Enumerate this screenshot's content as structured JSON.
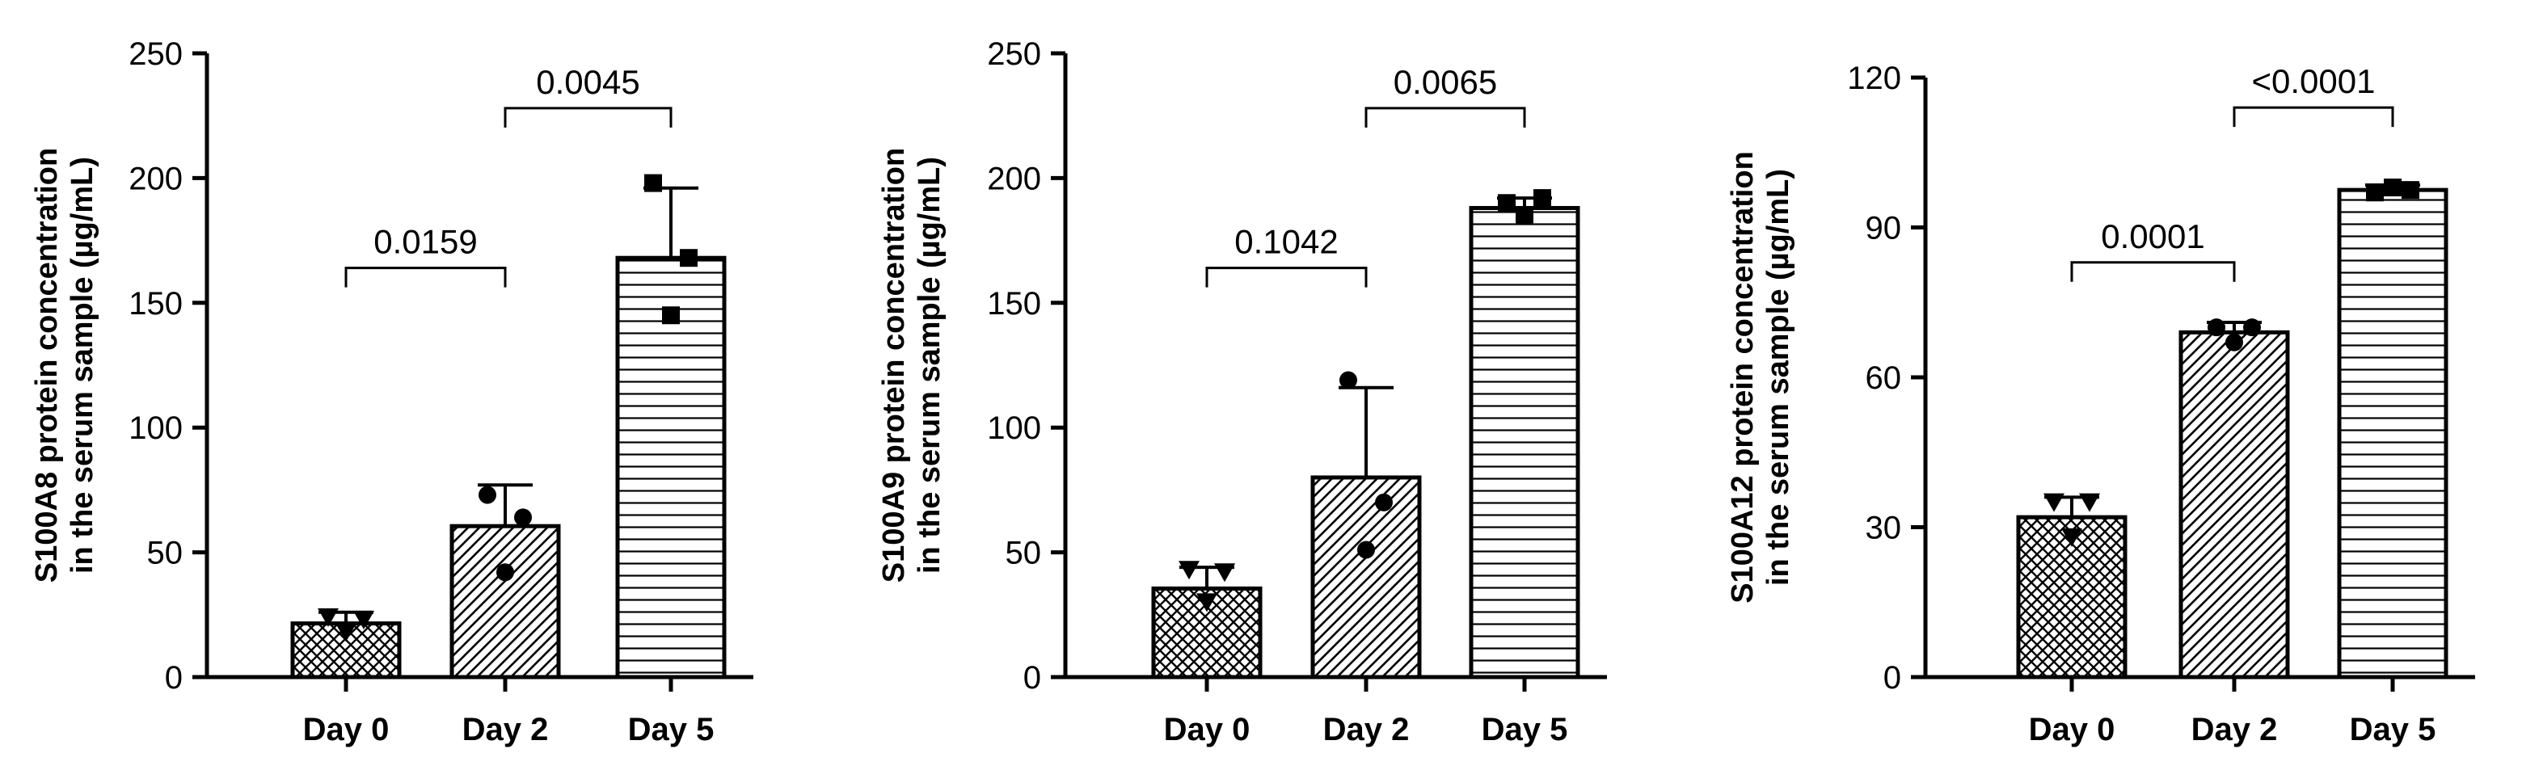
{
  "chart_data": [
    {
      "type": "bar",
      "categories": [
        "Day 0",
        "Day 2",
        "Day 5"
      ],
      "values": [
        21.5,
        60.5,
        168
      ],
      "error_upper": [
        26,
        77,
        196
      ],
      "points": [
        [
          24,
          18,
          23
        ],
        [
          73,
          42,
          64
        ],
        [
          198,
          145,
          168
        ]
      ],
      "marker": [
        "triangle",
        "circle",
        "square"
      ],
      "ylabel_lines": [
        "S100A8 protein concentration",
        "in the serum sample (µg/mL)"
      ],
      "ylim": [
        0,
        250
      ],
      "yticks": [
        0,
        50,
        100,
        150,
        200,
        250
      ],
      "comparisons": [
        {
          "from": 0,
          "to": 1,
          "label": "0.0159",
          "y": 164
        },
        {
          "from": 1,
          "to": 2,
          "label": "0.0045",
          "y": 228
        }
      ]
    },
    {
      "type": "bar",
      "categories": [
        "Day 0",
        "Day 2",
        "Day 5"
      ],
      "values": [
        35.5,
        80,
        188
      ],
      "error_upper": [
        44,
        116,
        192
      ],
      "points": [
        [
          43,
          30,
          42
        ],
        [
          119,
          51,
          70
        ],
        [
          190,
          185,
          192
        ]
      ],
      "marker": [
        "triangle",
        "circle",
        "square"
      ],
      "ylabel_lines": [
        "S100A9 protein concentration",
        "in the serum sample (µg/mL)"
      ],
      "ylim": [
        0,
        250
      ],
      "yticks": [
        0,
        50,
        100,
        150,
        200,
        250
      ],
      "comparisons": [
        {
          "from": 0,
          "to": 1,
          "label": "0.1042",
          "y": 164
        },
        {
          "from": 1,
          "to": 2,
          "label": "0.0065",
          "y": 228
        }
      ]
    },
    {
      "type": "bar",
      "categories": [
        "Day 0",
        "Day 2",
        "Day 5"
      ],
      "values": [
        32,
        69,
        97.5
      ],
      "error_upper": [
        36,
        71,
        98.5
      ],
      "points": [
        [
          35,
          28,
          35
        ],
        [
          70,
          67,
          70
        ],
        [
          97,
          98,
          97.5
        ]
      ],
      "marker": [
        "triangle",
        "circle",
        "square"
      ],
      "ylabel_lines": [
        "S100A12 protein concentration",
        "in the serum sample (µg/mL)"
      ],
      "ylim": [
        0,
        120
      ],
      "yticks": [
        0,
        30,
        60,
        90,
        120
      ],
      "comparisons": [
        {
          "from": 0,
          "to": 1,
          "label": "0.0001",
          "y": 83
        },
        {
          "from": 1,
          "to": 2,
          "label": "<0.0001",
          "y": 114
        }
      ]
    }
  ]
}
